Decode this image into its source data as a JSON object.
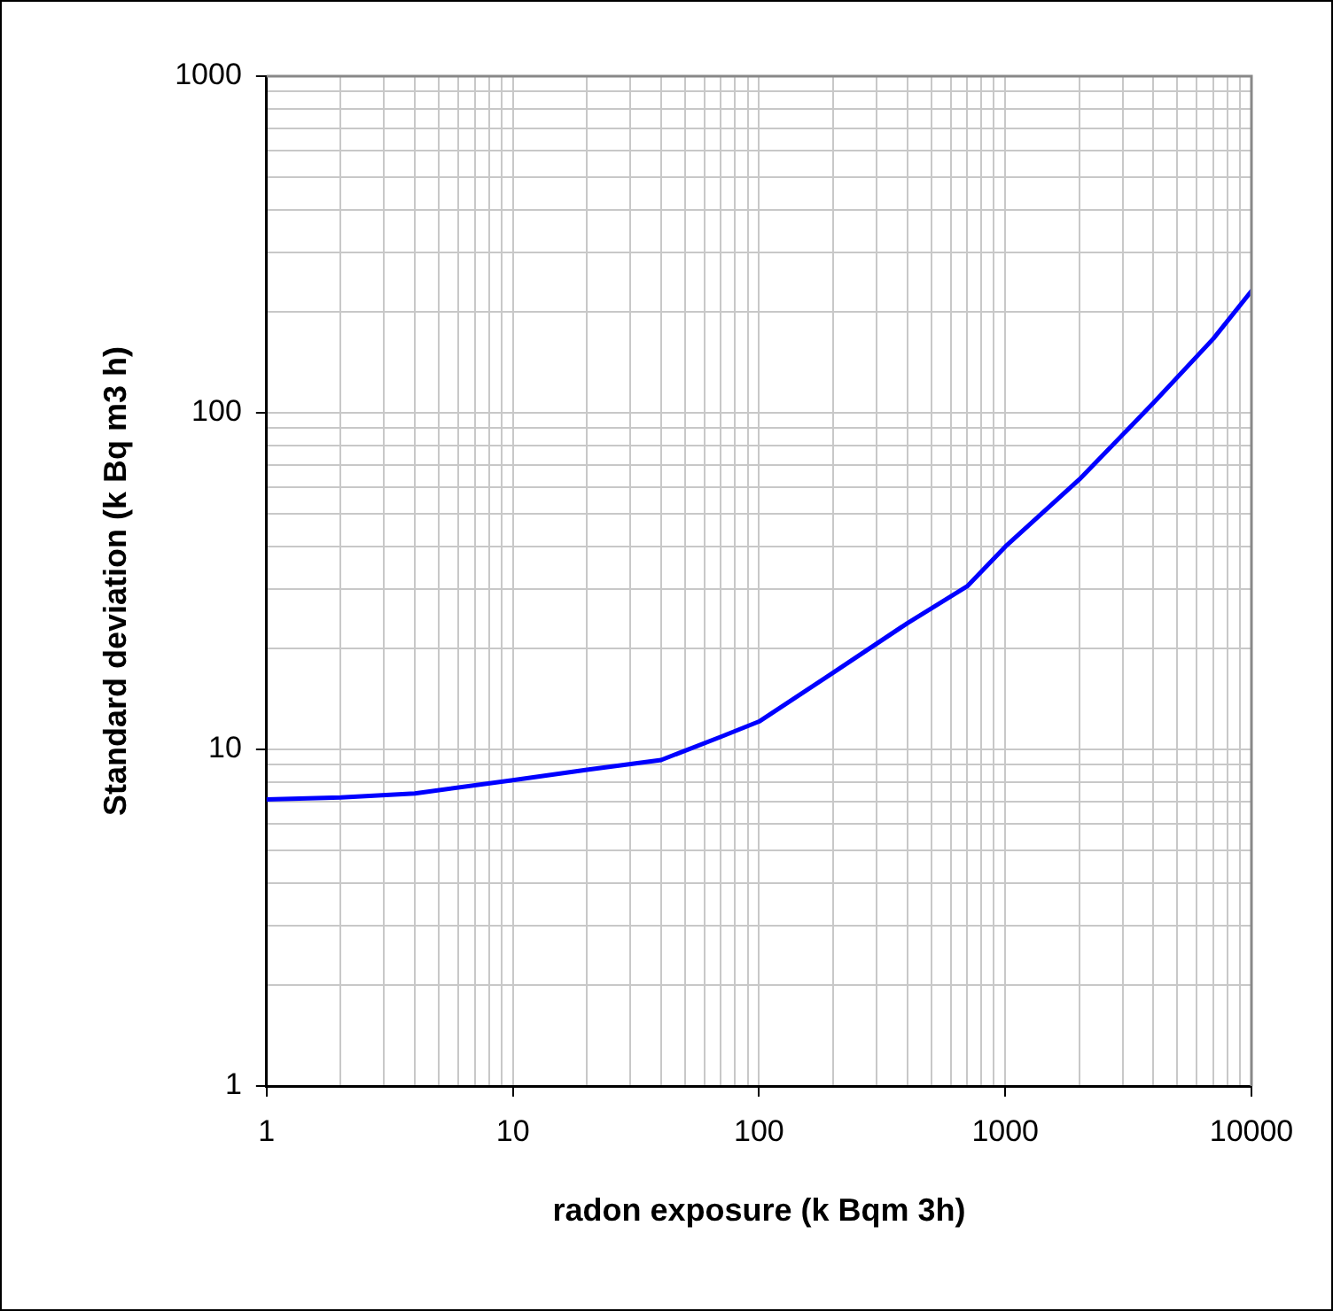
{
  "chart_data": {
    "type": "line",
    "xlabel": "radon exposure (k Bqm 3h)",
    "ylabel": "Standard deviation (k Bq m3 h)",
    "x": [
      1,
      2,
      4,
      10,
      20,
      40,
      70,
      100,
      200,
      400,
      700,
      1000,
      2000,
      4000,
      7000,
      10000
    ],
    "series": [
      {
        "color": "#0000ff",
        "values": [
          7.1,
          7.2,
          7.4,
          8.1,
          8.7,
          9.3,
          10.9,
          12.1,
          16.9,
          23.7,
          30.5,
          40,
          63.4,
          107,
          166,
          230
        ]
      }
    ],
    "log": "xy",
    "xlim": [
      1,
      10000
    ],
    "ylim": [
      1,
      1000
    ],
    "xticks": [
      1,
      {
        "value": 2,
        "label": null
      },
      {
        "value": 3,
        "label": null
      },
      {
        "value": 4,
        "label": null
      },
      {
        "value": 5,
        "label": null
      },
      {
        "value": 6,
        "label": null
      },
      {
        "value": 7,
        "label": null
      },
      {
        "value": 8,
        "label": null
      },
      {
        "value": 9,
        "label": null
      },
      10,
      {
        "value": 20,
        "label": null
      },
      {
        "value": 30,
        "label": null
      },
      {
        "value": 40,
        "label": null
      },
      {
        "value": 50,
        "label": null
      },
      {
        "value": 60,
        "label": null
      },
      {
        "value": 70,
        "label": null
      },
      {
        "value": 80,
        "label": null
      },
      {
        "value": 90,
        "label": null
      },
      100,
      {
        "value": 200,
        "label": null
      },
      {
        "value": 300,
        "label": null
      },
      {
        "value": 400,
        "label": null
      },
      {
        "value": 500,
        "label": null
      },
      {
        "value": 600,
        "label": null
      },
      {
        "value": 700,
        "label": null
      },
      {
        "value": 800,
        "label": null
      },
      {
        "value": 900,
        "label": null
      },
      1000,
      {
        "value": 2000,
        "label": null
      },
      {
        "value": 3000,
        "label": null
      },
      {
        "value": 4000,
        "label": null
      },
      {
        "value": 5000,
        "label": null
      },
      {
        "value": 6000,
        "label": null
      },
      {
        "value": 7000,
        "label": null
      },
      {
        "value": 8000,
        "label": null
      },
      {
        "value": 9000,
        "label": null
      },
      10000
    ],
    "yticks": [
      1,
      {
        "value": 2,
        "label": null
      },
      {
        "value": 3,
        "label": null
      },
      {
        "value": 4,
        "label": null
      },
      {
        "value": 5,
        "label": null
      },
      {
        "value": 6,
        "label": null
      },
      {
        "value": 7,
        "label": null
      },
      {
        "value": 8,
        "label": null
      },
      {
        "value": 9,
        "label": null
      },
      10,
      {
        "value": 20,
        "label": null
      },
      {
        "value": 30,
        "label": null
      },
      {
        "value": 40,
        "label": null
      },
      {
        "value": 50,
        "label": null
      },
      {
        "value": 60,
        "label": null
      },
      {
        "value": 70,
        "label": null
      },
      {
        "value": 80,
        "label": null
      },
      {
        "value": 90,
        "label": null
      },
      100,
      {
        "value": 200,
        "label": null
      },
      {
        "value": 300,
        "label": null
      },
      {
        "value": 400,
        "label": null
      },
      {
        "value": 500,
        "label": null
      },
      {
        "value": 600,
        "label": null
      },
      {
        "value": 700,
        "label": null
      },
      {
        "value": 800,
        "label": null
      },
      {
        "value": 900,
        "label": null
      },
      1000
    ],
    "grid": true,
    "legend": false,
    "marker": "none",
    "line_style": "solid"
  }
}
